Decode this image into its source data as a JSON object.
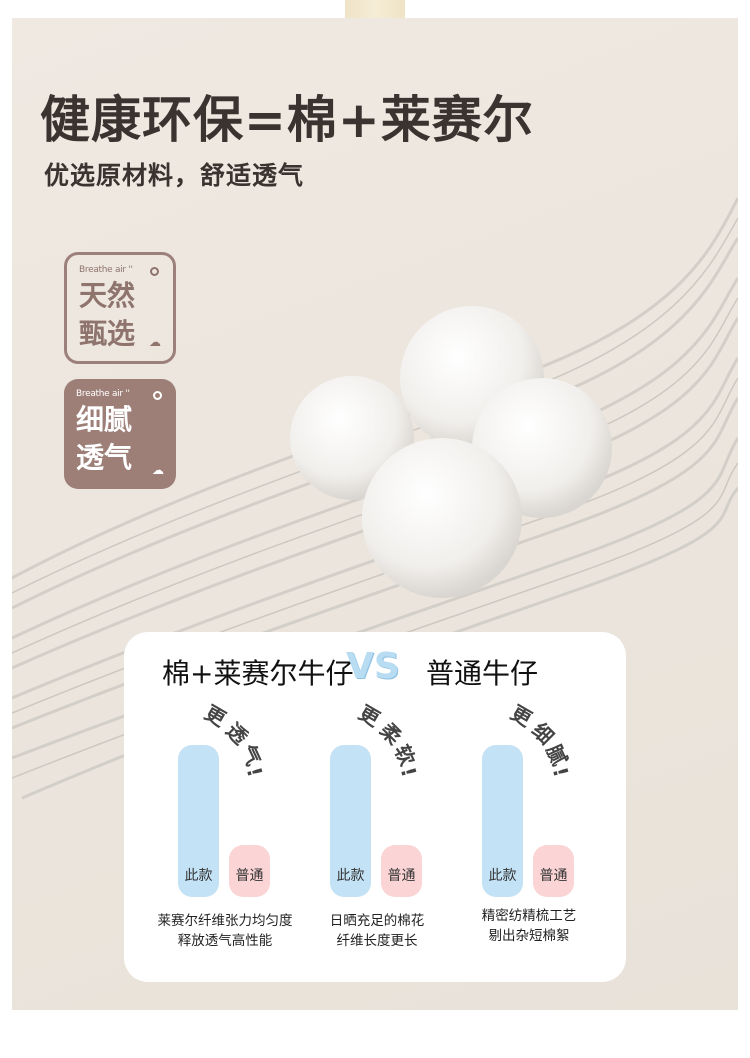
{
  "header": {
    "title": "健康环保=棉+莱赛尔",
    "subtitle": "优选原材料，舒适透气"
  },
  "badges": [
    {
      "en": "Breathe air ''",
      "zh1": "天然",
      "zh2": "甄选",
      "icon": "cloud-icon"
    },
    {
      "en": "Breathe air ''",
      "zh1": "细腻",
      "zh2": "透气",
      "icon": "cloud-icon"
    }
  ],
  "comparison": {
    "left": "棉+莱赛尔牛仔",
    "vs": "VS",
    "right": "普通牛仔",
    "groups": [
      {
        "claim": [
          "更",
          "透",
          "气",
          "!"
        ],
        "this_label": "此款",
        "normal_label": "普通",
        "desc1": "莱赛尔纤维张力均匀度",
        "desc2": "释放透气高性能"
      },
      {
        "claim": [
          "更",
          "柔",
          "软",
          "!"
        ],
        "this_label": "此款",
        "normal_label": "普通",
        "desc1": "日晒充足的棉花",
        "desc2": "纤维长度更长"
      },
      {
        "claim": [
          "更",
          "细",
          "腻",
          "!"
        ],
        "this_label": "此款",
        "normal_label": "普通",
        "desc1": "精密纺精梳工艺",
        "desc2": "剔出杂短棉絮"
      }
    ]
  },
  "colors": {
    "this": "#c3e2f6",
    "normal": "#fbd4d5",
    "badge": "#9d7f78"
  }
}
